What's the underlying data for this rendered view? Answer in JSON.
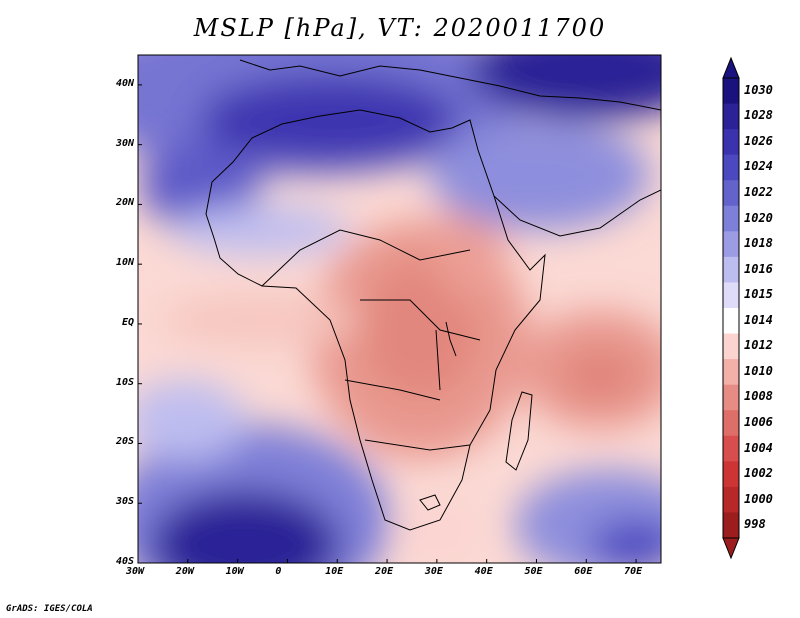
{
  "title": "MSLP [hPa], VT: 2020011700",
  "map": {
    "region": "Africa",
    "variable": "MSLP",
    "units": "hPa",
    "lon_range": [
      -30,
      75
    ],
    "lat_range": [
      -40,
      45
    ],
    "lat_labels": [
      "40N",
      "30N",
      "20N",
      "10N",
      "EQ",
      "10S",
      "20S",
      "30S",
      "40S"
    ],
    "lon_labels": [
      "30W",
      "20W",
      "10W",
      "0",
      "10E",
      "20E",
      "30E",
      "40E",
      "50E",
      "60E",
      "70E"
    ],
    "features": [
      "Mediterranean high",
      "Saharan high",
      "South Atlantic high",
      "Indian Ocean high",
      "Equatorial low"
    ]
  },
  "colorbar": {
    "labels": [
      "1030",
      "1028",
      "1026",
      "1024",
      "1022",
      "1020",
      "1018",
      "1016",
      "1015",
      "1014",
      "1012",
      "1010",
      "1008",
      "1006",
      "1004",
      "1002",
      "1000",
      "998"
    ],
    "colors": [
      "#1a137f",
      "#2a2296",
      "#3a33ad",
      "#4c48c0",
      "#6463cc",
      "#7e7fd8",
      "#9c9ce4",
      "#bebdf0",
      "#dedcf9",
      "#ffffff",
      "#fbd4d0",
      "#f2b0a9",
      "#e68c84",
      "#dd6e68",
      "#d84e4e",
      "#cd3535",
      "#b72828",
      "#9c1d1d"
    ]
  },
  "credit": "GrADS: IGES/COLA"
}
